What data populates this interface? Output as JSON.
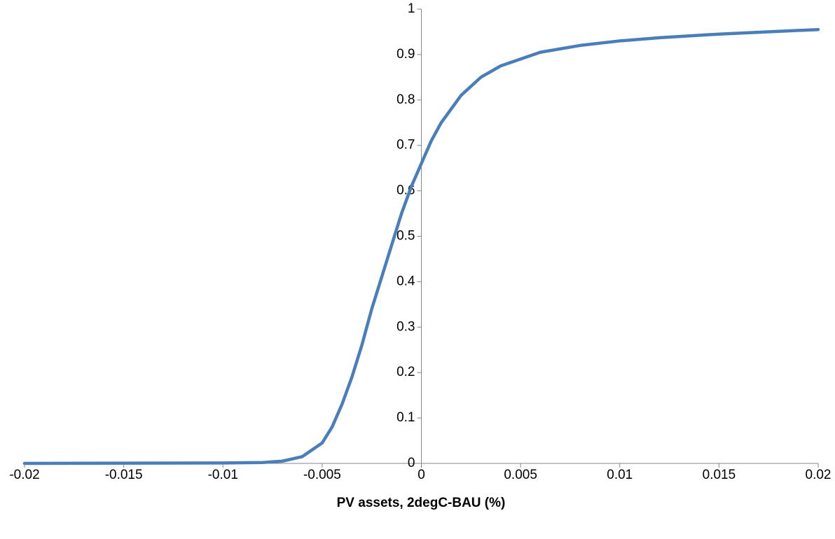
{
  "chart_data": {
    "type": "line",
    "x_label": "PV assets, 2degC-BAU (%)",
    "x": [
      -0.02,
      -0.01,
      -0.008,
      -0.007,
      -0.006,
      -0.005,
      -0.0045,
      -0.004,
      -0.0035,
      -0.003,
      -0.0025,
      -0.002,
      -0.0015,
      -0.001,
      -0.0005,
      0,
      0.0005,
      0.001,
      0.0015,
      0.002,
      0.003,
      0.004,
      0.005,
      0.006,
      0.008,
      0.01,
      0.012,
      0.015,
      0.02
    ],
    "series": [
      {
        "color": "#4a7ebb",
        "values": [
          0,
          0.001,
          0.002,
          0.005,
          0.015,
          0.045,
          0.08,
          0.13,
          0.19,
          0.26,
          0.34,
          0.41,
          0.48,
          0.55,
          0.61,
          0.66,
          0.71,
          0.75,
          0.78,
          0.81,
          0.85,
          0.875,
          0.89,
          0.905,
          0.92,
          0.93,
          0.937,
          0.945,
          0.955
        ]
      }
    ],
    "xlim": [
      -0.02,
      0.02
    ],
    "xticks": [
      -0.02,
      -0.015,
      -0.01,
      -0.005,
      0,
      0.005,
      0.01,
      0.015,
      0.02
    ],
    "ylim": [
      0,
      1
    ],
    "yticks": [
      0,
      0.1,
      0.2,
      0.3,
      0.4,
      0.5,
      0.6,
      0.7,
      0.8,
      0.9,
      1
    ],
    "grid": false
  }
}
